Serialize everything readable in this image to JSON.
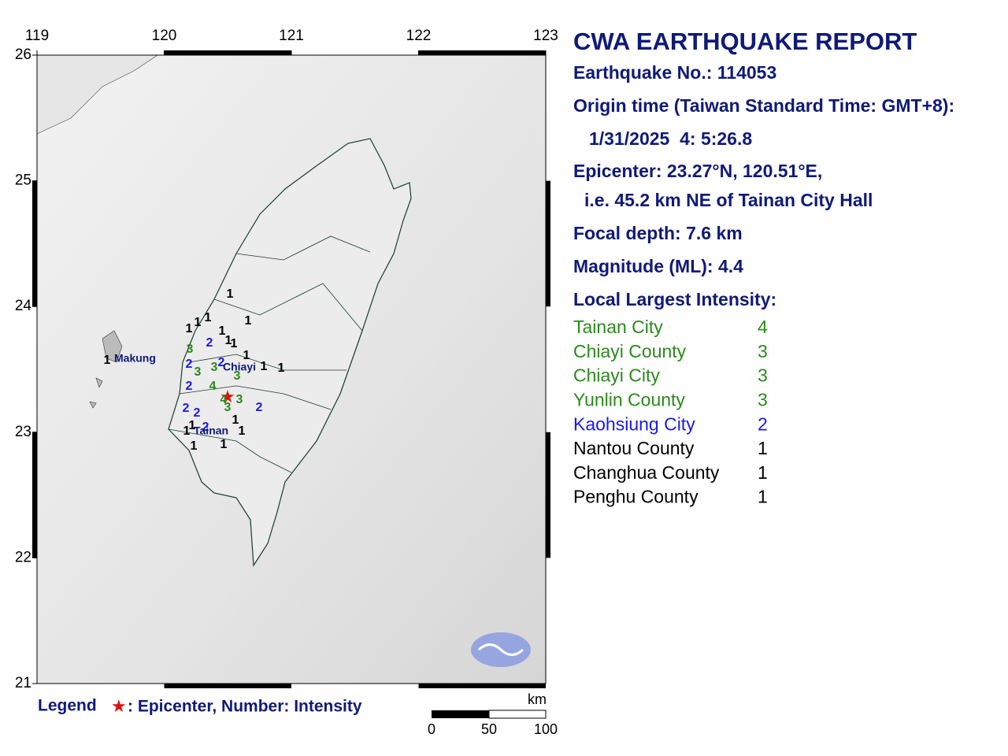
{
  "map": {
    "lon_ticks": [
      119,
      120,
      121,
      122,
      123
    ],
    "lat_ticks": [
      26,
      25,
      24,
      23,
      22,
      21
    ],
    "station_intensities": [
      "1",
      "1",
      "1",
      "1",
      "1",
      "1",
      "1",
      "1",
      "3",
      "2",
      "1",
      "2",
      "2",
      "3",
      "3",
      "1",
      "1",
      "3",
      "2",
      "4",
      "2",
      "2",
      "4",
      "3",
      "3",
      "2",
      "1",
      "2",
      "1",
      "1",
      "1",
      "1",
      "1",
      "1"
    ],
    "place_names": [
      "Makung",
      "Chiayi",
      "Tainan"
    ],
    "intensity_colors": {
      "1": "#000000",
      "2": "#1a1ae6",
      "3": "#2a8a1a",
      "4": "#2a8a1a"
    }
  },
  "legend": {
    "label": "Legend",
    "symbol": "★",
    "text": ": Epicenter, Number: Intensity"
  },
  "scale": {
    "unit": "km",
    "labels": [
      "0",
      "50",
      "100"
    ]
  },
  "report": {
    "title": "CWA EARTHQUAKE REPORT",
    "lines": [
      "Earthquake No.: 114053",
      "Origin time (Taiwan Standard Time: GMT+8):",
      "1/31/2025  4: 5:26.8",
      "Epicenter: 23.27°N, 120.51°E,",
      "i.e. 45.2 km NE of Tainan City Hall",
      "Focal depth: 7.6 km",
      "Magnitude (ML): 4.4",
      "Local Largest Intensity:"
    ],
    "intensity_table": [
      {
        "area": "Tainan City",
        "intensity": "4"
      },
      {
        "area": "Chiayi County",
        "intensity": "3"
      },
      {
        "area": "Chiayi City",
        "intensity": "3"
      },
      {
        "area": "Yunlin County",
        "intensity": "3"
      },
      {
        "area": "Kaohsiung City",
        "intensity": "2"
      },
      {
        "area": "Nantou County",
        "intensity": "1"
      },
      {
        "area": "Changhua County",
        "intensity": "1"
      },
      {
        "area": "Penghu County",
        "intensity": "1"
      }
    ]
  }
}
